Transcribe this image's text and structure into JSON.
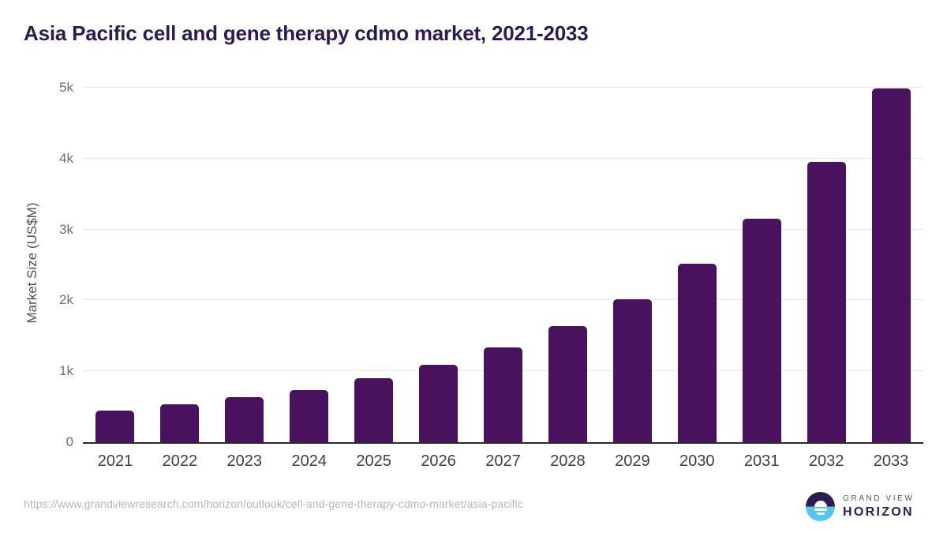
{
  "chart_data": {
    "type": "bar",
    "title": "Asia Pacific cell and gene therapy cdmo market, 2021-2033",
    "xlabel": "",
    "ylabel": "Market Size (US$M)",
    "categories": [
      "2021",
      "2022",
      "2023",
      "2024",
      "2025",
      "2026",
      "2027",
      "2028",
      "2029",
      "2030",
      "2031",
      "2032",
      "2033"
    ],
    "values": [
      450,
      540,
      630,
      740,
      900,
      1090,
      1340,
      1640,
      2020,
      2520,
      3150,
      3950,
      4990
    ],
    "ylim": [
      0,
      5000
    ],
    "yticks": [
      {
        "label": "0",
        "value": 0
      },
      {
        "label": "1k",
        "value": 1000
      },
      {
        "label": "2k",
        "value": 2000
      },
      {
        "label": "3k",
        "value": 3000
      },
      {
        "label": "4k",
        "value": 4000
      },
      {
        "label": "5k",
        "value": 5000
      }
    ],
    "grid": "horizontal",
    "legend": "none",
    "bar_color": "#4a115f"
  },
  "colors": {
    "background": "#ffffff",
    "title_text": "#2d1a52",
    "bar_fill": "#4a115f",
    "gridline": "#e7e7e7",
    "axis_line": "#2b2b2b",
    "tick_text": "#6e6e6e",
    "xtick_text": "#3f3f3f",
    "url_text": "#b6b6b6",
    "logo_dark": "#2b1e4e",
    "logo_blue": "#58c5f1"
  },
  "footer": {
    "source_url": "https://www.grandviewresearch.com/horizon/outlook/cell-and-gene-therapy-cdmo-market/asia-pacific",
    "logo": {
      "line1": "GRAND VIEW",
      "line2": "HORIZON"
    }
  }
}
